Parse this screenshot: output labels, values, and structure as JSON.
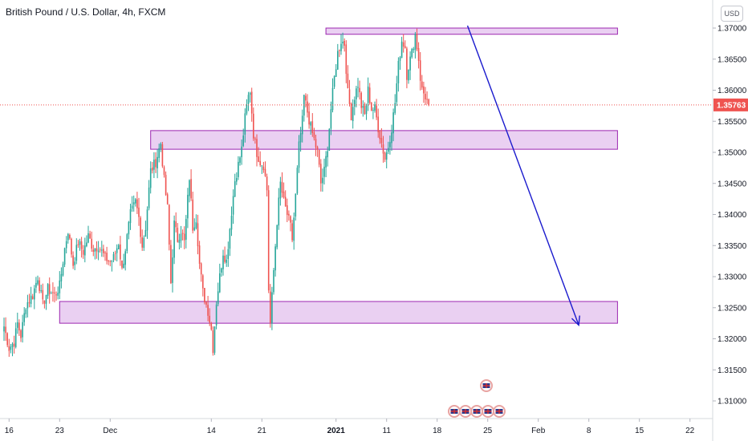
{
  "title": "British Pound / U.S. Dollar, 4h, FXCM",
  "currency_button": "USD",
  "chart_data": {
    "type": "candlestick",
    "symbol": "GBPUSD",
    "timeframe": "4h",
    "source": "FXCM",
    "ylim": [
      1.3055,
      1.3715
    ],
    "y_ticks": [
      "1.37000",
      "1.36500",
      "1.36000",
      "1.35500",
      "1.35000",
      "1.34500",
      "1.34000",
      "1.33500",
      "1.33000",
      "1.32500",
      "1.32000",
      "1.31500",
      "1.31000"
    ],
    "x_ticks": [
      {
        "label": "16",
        "idx": 3
      },
      {
        "label": "23",
        "idx": 33
      },
      {
        "label": "Dec",
        "idx": 63
      },
      {
        "label": "14",
        "idx": 123
      },
      {
        "label": "21",
        "idx": 153
      },
      {
        "label": "2021",
        "idx": 197,
        "bold": true
      },
      {
        "label": "11",
        "idx": 227
      },
      {
        "label": "18",
        "idx": 257
      },
      {
        "label": "25",
        "idx": 287
      },
      {
        "label": "Feb",
        "idx": 317
      },
      {
        "label": "8",
        "idx": 347
      },
      {
        "label": "15",
        "idx": 377
      },
      {
        "label": "22",
        "idx": 407
      }
    ],
    "last_price": "1.35763",
    "colors": {
      "up": "#26a69a",
      "down": "#ef5350",
      "zone_fill": "#e6c8f0",
      "zone_border": "#9c27b0",
      "arrow": "#1a1acd",
      "price_line": "#ef5350"
    },
    "zones": [
      {
        "start_idx": 191,
        "end_idx": 364,
        "low": 1.369,
        "high": 1.37
      },
      {
        "start_idx": 87,
        "end_idx": 364,
        "low": 1.3505,
        "high": 1.3535
      },
      {
        "start_idx": 33,
        "end_idx": 364,
        "low": 1.3225,
        "high": 1.326
      }
    ],
    "projection": {
      "from_idx": 275,
      "from_price": 1.37,
      "to_idx": 341,
      "to_price": 1.3222,
      "direction": "down"
    },
    "anchors": [
      [
        0,
        1.322
      ],
      [
        3,
        1.3185
      ],
      [
        6,
        1.3195
      ],
      [
        8,
        1.3225
      ],
      [
        10,
        1.3205
      ],
      [
        13,
        1.3255
      ],
      [
        17,
        1.327
      ],
      [
        20,
        1.33
      ],
      [
        23,
        1.3255
      ],
      [
        26,
        1.328
      ],
      [
        30,
        1.327
      ],
      [
        33,
        1.3285
      ],
      [
        36,
        1.3345
      ],
      [
        38,
        1.3375
      ],
      [
        41,
        1.332
      ],
      [
        44,
        1.3355
      ],
      [
        47,
        1.334
      ],
      [
        50,
        1.3365
      ],
      [
        53,
        1.3345
      ],
      [
        56,
        1.335
      ],
      [
        60,
        1.333
      ],
      [
        63,
        1.3325
      ],
      [
        65,
        1.333
      ],
      [
        68,
        1.3355
      ],
      [
        70,
        1.331
      ],
      [
        72,
        1.3345
      ],
      [
        75,
        1.34
      ],
      [
        78,
        1.342
      ],
      [
        80,
        1.3395
      ],
      [
        82,
        1.335
      ],
      [
        84,
        1.338
      ],
      [
        87,
        1.347
      ],
      [
        90,
        1.3485
      ],
      [
        93,
        1.3515
      ],
      [
        95,
        1.3455
      ],
      [
        97,
        1.341
      ],
      [
        99,
        1.329
      ],
      [
        101,
        1.3385
      ],
      [
        103,
        1.336
      ],
      [
        105,
        1.3375
      ],
      [
        107,
        1.3355
      ],
      [
        110,
        1.346
      ],
      [
        112,
        1.338
      ],
      [
        114,
        1.3395
      ],
      [
        116,
        1.332
      ],
      [
        118,
        1.3275
      ],
      [
        121,
        1.3245
      ],
      [
        123,
        1.3215
      ],
      [
        124,
        1.3185
      ],
      [
        126,
        1.326
      ],
      [
        128,
        1.33
      ],
      [
        130,
        1.334
      ],
      [
        132,
        1.3325
      ],
      [
        135,
        1.3405
      ],
      [
        137,
        1.3455
      ],
      [
        139,
        1.348
      ],
      [
        141,
        1.3505
      ],
      [
        143,
        1.3555
      ],
      [
        145,
        1.359
      ],
      [
        146,
        1.36
      ],
      [
        148,
        1.353
      ],
      [
        150,
        1.35
      ],
      [
        152,
        1.3485
      ],
      [
        154,
        1.348
      ],
      [
        156,
        1.344
      ],
      [
        157,
        1.328
      ],
      [
        158,
        1.3225
      ],
      [
        160,
        1.331
      ],
      [
        162,
        1.339
      ],
      [
        164,
        1.345
      ],
      [
        166,
        1.342
      ],
      [
        168,
        1.34
      ],
      [
        170,
        1.338
      ],
      [
        171,
        1.336
      ],
      [
        173,
        1.343
      ],
      [
        175,
        1.351
      ],
      [
        177,
        1.355
      ],
      [
        178,
        1.359
      ],
      [
        180,
        1.3565
      ],
      [
        182,
        1.354
      ],
      [
        184,
        1.352
      ],
      [
        186,
        1.35
      ],
      [
        188,
        1.345
      ],
      [
        190,
        1.347
      ],
      [
        192,
        1.351
      ],
      [
        194,
        1.357
      ],
      [
        196,
        1.362
      ],
      [
        198,
        1.366
      ],
      [
        200,
        1.368
      ],
      [
        202,
        1.3675
      ],
      [
        204,
        1.3595
      ],
      [
        206,
        1.356
      ],
      [
        208,
        1.359
      ],
      [
        210,
        1.361
      ],
      [
        212,
        1.3575
      ],
      [
        214,
        1.356
      ],
      [
        216,
        1.36
      ],
      [
        218,
        1.357
      ],
      [
        220,
        1.357
      ],
      [
        222,
        1.354
      ],
      [
        224,
        1.3515
      ],
      [
        226,
        1.349
      ],
      [
        228,
        1.351
      ],
      [
        230,
        1.354
      ],
      [
        232,
        1.358
      ],
      [
        234,
        1.364
      ],
      [
        236,
        1.368
      ],
      [
        238,
        1.367
      ],
      [
        239,
        1.3625
      ],
      [
        240,
        1.364
      ],
      [
        242,
        1.366
      ],
      [
        244,
        1.369
      ],
      [
        246,
        1.365
      ],
      [
        247,
        1.362
      ],
      [
        248,
        1.36
      ],
      [
        250,
        1.359
      ],
      [
        252,
        1.3576
      ]
    ]
  }
}
